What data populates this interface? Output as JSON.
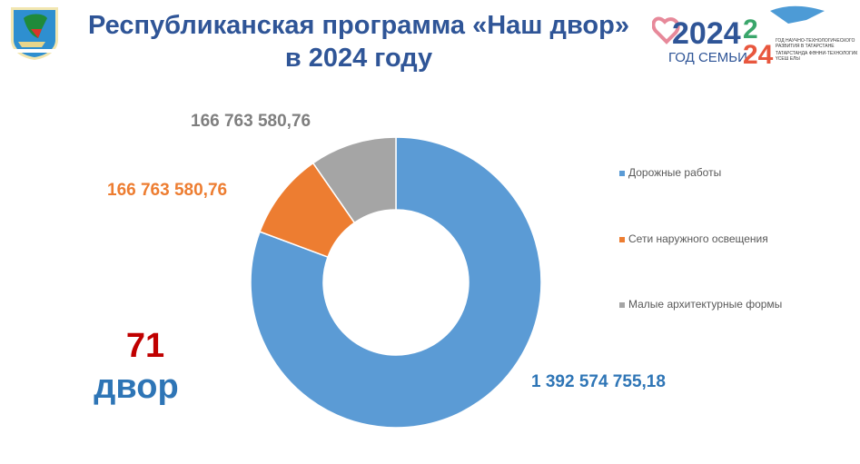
{
  "header": {
    "title_line1": "Республиканская программа «Наш двор»",
    "title_line2": "в 2024 году"
  },
  "logos": {
    "year_of_family": "2024 ГОД СЕМЬИ",
    "science_year": "ГОД НАУЧНО-ТЕХНОЛОГИЧЕСКОГО РАЗВИТИЯ В ТАТАРСТАНЕ / ТАТАРСТАНДА ФӘННИ-ТЕХНОЛОГИК ҮСЕШ ЕЛЫ"
  },
  "summary": {
    "count": "71",
    "unit": "двор"
  },
  "chart_data": {
    "type": "pie",
    "donut": true,
    "categories": [
      "Дорожные работы",
      "Сети наружного освещения",
      "Малые архитектурные формы"
    ],
    "values": [
      1392574755.18,
      166763580.76,
      166763580.76
    ],
    "labels": [
      "1 392 574 755,18",
      "166 763 580,76",
      "166 763 580,76"
    ],
    "colors": [
      "#5b9bd5",
      "#ed7d31",
      "#a5a5a5"
    ],
    "label_colors": [
      "#2e75b6",
      "#ed7d31",
      "#7f7f7f"
    ],
    "legend_position": "right"
  }
}
